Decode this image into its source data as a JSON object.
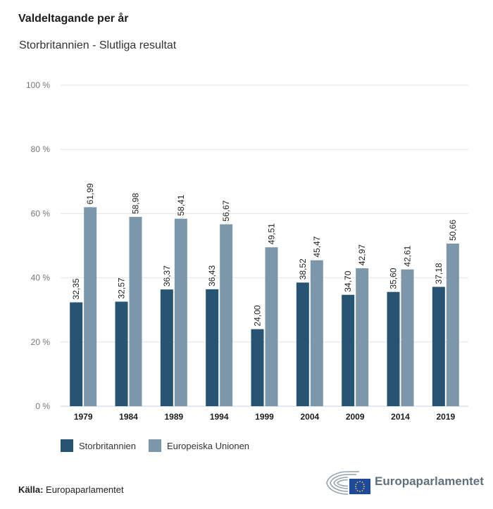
{
  "header": {
    "title": "Valdeltagande per år",
    "subtitle": "Storbritannien - Slutliga resultat"
  },
  "chart_data": {
    "type": "bar",
    "title": "Valdeltagande per år",
    "subtitle": "Storbritannien - Slutliga resultat",
    "xlabel": "",
    "ylabel": "",
    "categories": [
      "1979",
      "1984",
      "1989",
      "1994",
      "1999",
      "2004",
      "2009",
      "2014",
      "2019"
    ],
    "series": [
      {
        "name": "Storbritannien",
        "color": "#275472",
        "values": [
          32.35,
          32.57,
          36.37,
          36.43,
          24.0,
          38.52,
          34.7,
          35.6,
          37.18
        ],
        "labels": [
          "32,35",
          "32,57",
          "36,37",
          "36,43",
          "24,00",
          "38,52",
          "34,70",
          "35,60",
          "37,18"
        ]
      },
      {
        "name": "Europeiska Unionen",
        "color": "#7d97aa",
        "values": [
          61.99,
          58.98,
          58.41,
          56.67,
          49.51,
          45.47,
          42.97,
          42.61,
          50.66
        ],
        "labels": [
          "61,99",
          "58,98",
          "58,41",
          "56,67",
          "49,51",
          "45,47",
          "42,97",
          "42,61",
          "50,66"
        ]
      }
    ],
    "yticks": [
      0,
      20,
      40,
      60,
      80,
      100
    ],
    "ytick_labels": [
      "0 %",
      "20 %",
      "40 %",
      "60 %",
      "80 %",
      "100 %"
    ],
    "ylim": [
      0,
      100
    ],
    "grid": true,
    "legend": "bottom-left"
  },
  "legend": {
    "items": [
      {
        "label": "Storbritannien",
        "color": "#275472"
      },
      {
        "label": "Europeiska Unionen",
        "color": "#7d97aa"
      }
    ]
  },
  "footer": {
    "source_label": "Källa:",
    "source_value": "Europaparlamentet",
    "logo_text": "Europaparlamentet"
  }
}
